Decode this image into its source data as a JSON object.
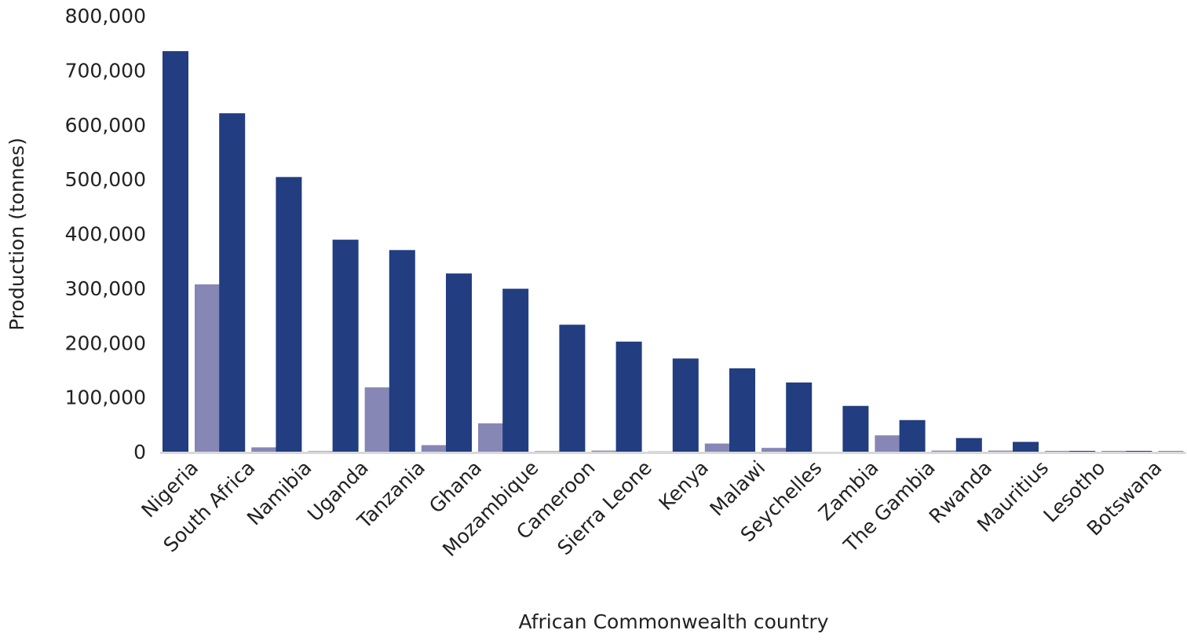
{
  "chart_data": {
    "type": "bar",
    "title": "",
    "xlabel": "African Commonwealth country",
    "ylabel": "Production (tonnes)",
    "ylim": [
      0,
      800000
    ],
    "yticks": [
      0,
      100000,
      200000,
      300000,
      400000,
      500000,
      600000,
      700000,
      800000
    ],
    "ytick_labels": [
      "0",
      "100,000",
      "200,000",
      "300,000",
      "400,000",
      "500,000",
      "600,000",
      "700,000",
      "800,000"
    ],
    "grid": false,
    "legend": "none",
    "categories": [
      "Nigeria",
      "South Africa",
      "Namibia",
      "Uganda",
      "Tanzania",
      "Ghana",
      "Mozambique",
      "Cameroon",
      "Sierra Leone",
      "Kenya",
      "Malawi",
      "Seychelles",
      "Zambia",
      "The Gambia",
      "Rwanda",
      "Mauritius",
      "Lesotho",
      "Botswana"
    ],
    "series": [
      {
        "color": "#223d80",
        "values": [
          735000,
          621000,
          504000,
          389000,
          370000,
          327000,
          299000,
          233000,
          202000,
          171000,
          153000,
          127000,
          84000,
          58000,
          25000,
          18000,
          1500,
          1500
        ]
      },
      {
        "color": "#8787b5",
        "values": [
          307000,
          8000,
          1000,
          118000,
          12000,
          52000,
          1000,
          2000,
          500,
          15000,
          7000,
          0,
          30000,
          2000,
          2000,
          1500,
          1500,
          1500
        ]
      }
    ]
  }
}
